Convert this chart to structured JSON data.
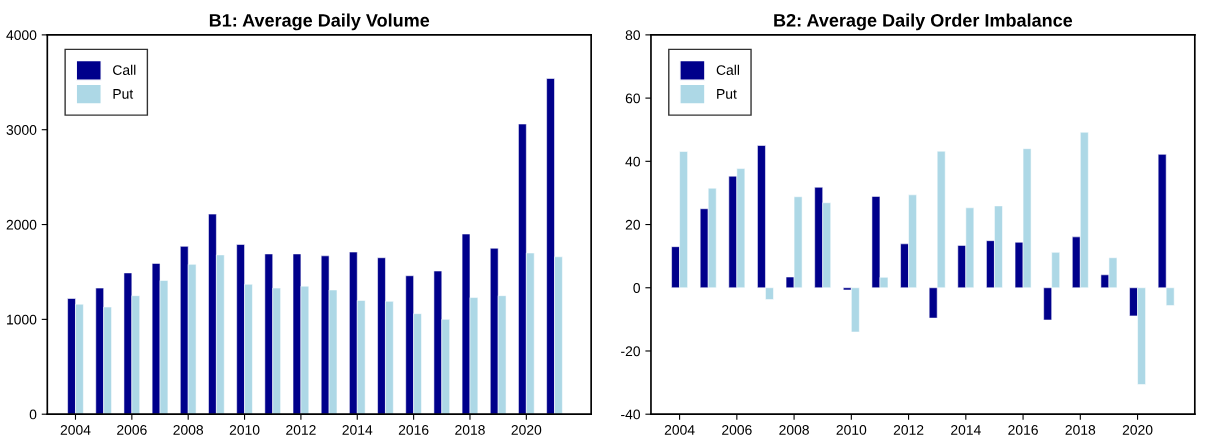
{
  "chart_data": [
    {
      "type": "bar",
      "title": "B1: Average Daily Volume",
      "x": [
        2004,
        2005,
        2006,
        2007,
        2008,
        2009,
        2010,
        2011,
        2012,
        2013,
        2014,
        2015,
        2016,
        2017,
        2018,
        2019,
        2020,
        2021
      ],
      "series": [
        {
          "name": "Call",
          "color": "#00008b",
          "values": [
            1220,
            1330,
            1490,
            1590,
            1770,
            2110,
            1790,
            1690,
            1690,
            1670,
            1710,
            1650,
            1460,
            1510,
            1900,
            1750,
            3060,
            3540
          ]
        },
        {
          "name": "Put",
          "color": "#add8e6",
          "values": [
            1160,
            1130,
            1250,
            1410,
            1580,
            1680,
            1370,
            1330,
            1350,
            1310,
            1200,
            1190,
            1060,
            1000,
            1230,
            1250,
            1700,
            1660
          ]
        }
      ],
      "xlim": [
        2003,
        2022.3
      ],
      "xticks": [
        2004,
        2006,
        2008,
        2010,
        2012,
        2014,
        2016,
        2018,
        2020
      ],
      "ylim": [
        0,
        4000
      ],
      "yticks": [
        0,
        1000,
        2000,
        3000,
        4000
      ],
      "grid": false,
      "legend": "top left"
    },
    {
      "type": "bar",
      "title": "B2: Average Daily Order Imbalance",
      "x": [
        2004,
        2005,
        2006,
        2007,
        2008,
        2009,
        2010,
        2011,
        2012,
        2013,
        2014,
        2015,
        2016,
        2017,
        2018,
        2019,
        2020,
        2021
      ],
      "series": [
        {
          "name": "Call",
          "color": "#00008b",
          "values": [
            13.0,
            25.0,
            35.3,
            45.0,
            3.4,
            31.8,
            -0.7,
            28.9,
            13.9,
            -9.6,
            13.4,
            14.9,
            14.4,
            -10.2,
            16.1,
            4.1,
            -8.9,
            42.2
          ]
        },
        {
          "name": "Put",
          "color": "#add8e6",
          "values": [
            43.1,
            31.5,
            37.7,
            -3.7,
            28.8,
            26.9,
            -14.0,
            3.3,
            29.4,
            43.2,
            25.3,
            25.9,
            44.0,
            11.2,
            49.2,
            9.5,
            -30.6,
            -5.6
          ]
        }
      ],
      "xlim": [
        2003,
        2022
      ],
      "xticks": [
        2004,
        2006,
        2008,
        2010,
        2012,
        2014,
        2016,
        2018,
        2020
      ],
      "ylim": [
        -40,
        80
      ],
      "yticks": [
        -40,
        -20,
        0,
        20,
        40,
        60,
        80
      ],
      "grid": false,
      "legend": "top left"
    }
  ]
}
